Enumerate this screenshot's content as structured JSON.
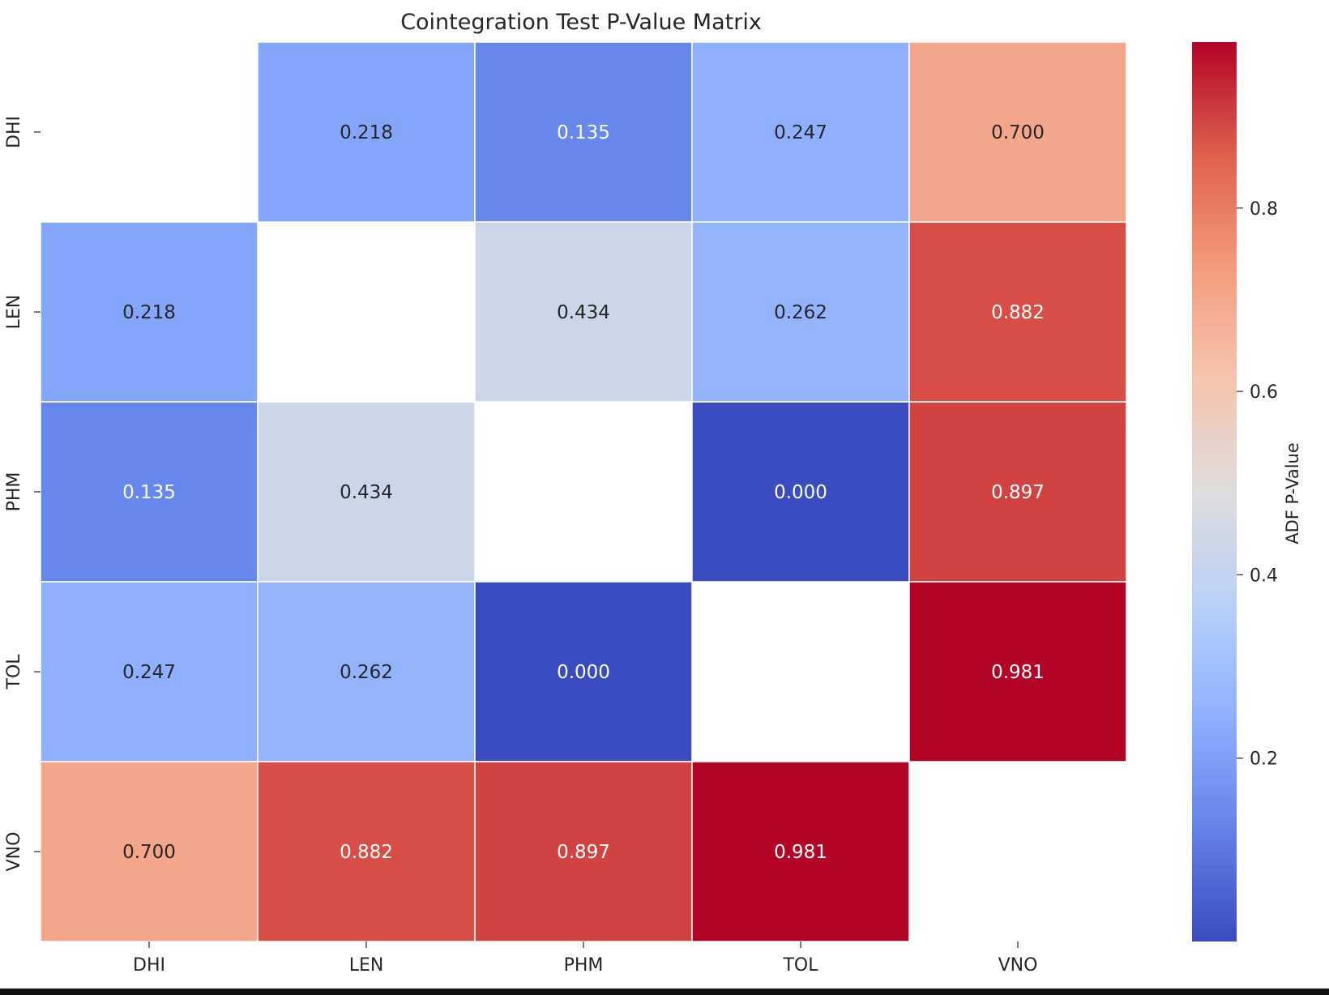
{
  "chart_data": {
    "type": "heatmap",
    "title": "Cointegration Test P-Value Matrix",
    "xlabel": "",
    "ylabel": "",
    "x_categories": [
      "DHI",
      "LEN",
      "PHM",
      "TOL",
      "VNO"
    ],
    "y_categories": [
      "DHI",
      "LEN",
      "PHM",
      "TOL",
      "VNO"
    ],
    "values": [
      [
        null,
        0.218,
        0.135,
        0.247,
        0.7
      ],
      [
        0.218,
        null,
        0.434,
        0.262,
        0.882
      ],
      [
        0.135,
        0.434,
        null,
        0.0,
        0.897
      ],
      [
        0.247,
        0.262,
        0.0,
        null,
        0.981
      ],
      [
        0.7,
        0.882,
        0.897,
        0.981,
        null
      ]
    ],
    "value_format": "0.000",
    "colormap": "coolwarm",
    "vmin": 0.0,
    "vmax": 0.981,
    "colorbar": {
      "label": "ADF P-Value",
      "ticks": [
        0.2,
        0.4,
        0.6,
        0.8
      ],
      "tick_labels": [
        "0.2",
        "0.4",
        "0.6",
        "0.8"
      ],
      "position": "right"
    },
    "grid": false,
    "cell_border_color": "#ffffff",
    "colors": {
      "low": "#3b4cc0",
      "mid": "#dddcdc",
      "high": "#b40426",
      "light_text": "#ffffff",
      "dark_text": "#262626"
    }
  }
}
